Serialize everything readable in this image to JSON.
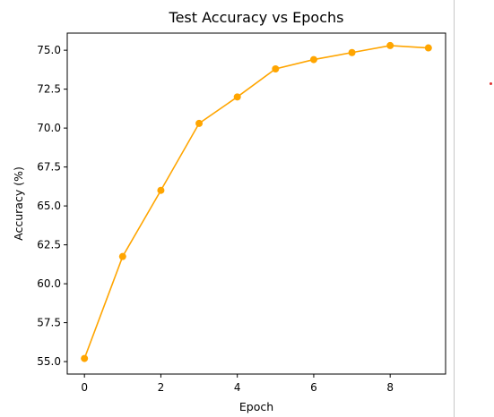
{
  "chart_data": {
    "type": "line",
    "title": "Test Accuracy vs Epochs",
    "xlabel": "Epoch",
    "ylabel": "Accuracy (%)",
    "x": [
      0,
      1,
      2,
      3,
      4,
      5,
      6,
      7,
      8,
      9
    ],
    "series": [
      {
        "values": [
          55.2,
          61.75,
          66.0,
          70.3,
          72.0,
          73.8,
          74.4,
          74.85,
          75.3,
          75.15
        ],
        "color": "#FFA500"
      }
    ],
    "xlim": [
      -0.45,
      9.45
    ],
    "ylim": [
      54.2,
      76.1
    ],
    "xticks": [
      0,
      2,
      4,
      6,
      8
    ],
    "xtick_labels": [
      "0",
      "2",
      "4",
      "6",
      "8"
    ],
    "yticks": [
      55.0,
      57.5,
      60.0,
      62.5,
      65.0,
      67.5,
      70.0,
      72.5,
      75.0
    ],
    "ytick_labels": [
      "55.0",
      "57.5",
      "60.0",
      "62.5",
      "65.0",
      "67.5",
      "70.0",
      "72.5",
      "75.0"
    ],
    "marker": "circle",
    "grid": false,
    "legend": "none"
  }
}
